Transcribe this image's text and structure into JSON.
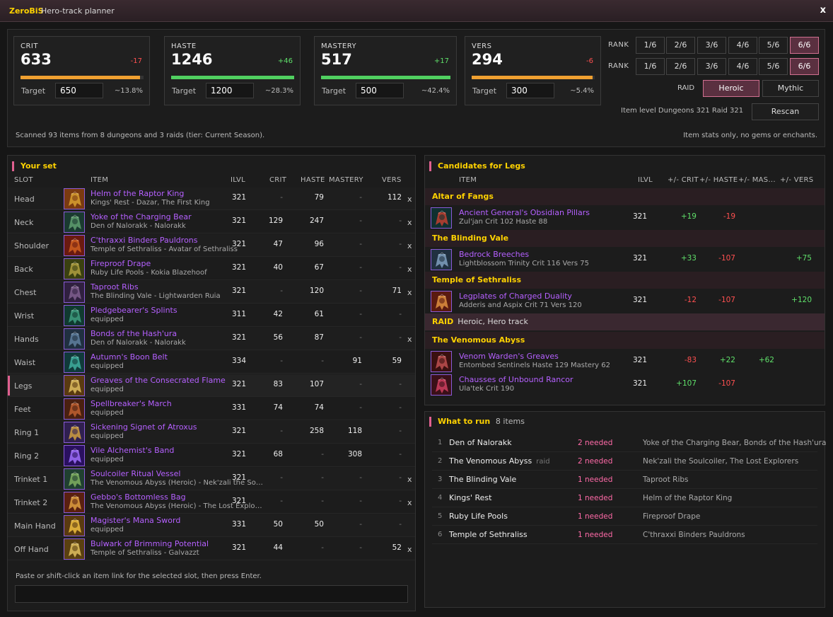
{
  "titlebar": {
    "brand": "ZeroBiS",
    "subtitle": "Hero-track planner",
    "close": "x"
  },
  "stats": [
    {
      "name": "CRIT",
      "value": "633",
      "delta": "-17",
      "delta_sign": "neg",
      "target": "650",
      "pct": "~13.8%",
      "bar_color": "#f0a030",
      "progress": 0.97
    },
    {
      "name": "HASTE",
      "value": "1246",
      "delta": "+46",
      "delta_sign": "pos",
      "target": "1200",
      "pct": "~28.3%",
      "bar_color": "#50d060",
      "progress": 1.0
    },
    {
      "name": "MASTERY",
      "value": "517",
      "delta": "+17",
      "delta_sign": "pos",
      "target": "500",
      "pct": "~42.4%",
      "bar_color": "#50d060",
      "progress": 1.0
    },
    {
      "name": "VERS",
      "value": "294",
      "delta": "-6",
      "delta_sign": "neg",
      "target": "300",
      "pct": "~5.4%",
      "bar_color": "#f0a030",
      "progress": 0.98
    }
  ],
  "target_label": "Target",
  "rank": {
    "label": "RANK",
    "rows": [
      {
        "options": [
          "1/6",
          "2/6",
          "3/6",
          "4/6",
          "5/6",
          "6/6"
        ],
        "selected": 5
      },
      {
        "options": [
          "1/6",
          "2/6",
          "3/6",
          "4/6",
          "5/6",
          "6/6"
        ],
        "selected": 5
      }
    ]
  },
  "raid": {
    "label": "RAID",
    "options": [
      "Heroic",
      "Mythic"
    ],
    "selected": 0
  },
  "ilvl_text": "Item level  Dungeons 321  Raid 321",
  "rescan": "Rescan",
  "scan_info": "Scanned 93 items from 8 dungeons and 3 raids (tier: Current Season).",
  "stats_note": "Item stats only, no gems or enchants.",
  "yourset": {
    "title": "Your set",
    "headers": {
      "slot": "SLOT",
      "item": "ITEM",
      "ilvl": "ILVL",
      "crit": "CRIT",
      "haste": "HASTE",
      "mastery": "MASTERY",
      "vers": "VERS"
    },
    "rows": [
      {
        "slot": "Head",
        "name": "Helm of the Raptor King",
        "src": "Kings' Rest - Dazar, The First King",
        "ilvl": "321",
        "crit": "-",
        "haste": "79",
        "mastery": "-",
        "vers": "112",
        "x": true,
        "icon": "helm-icon",
        "c1": "#7a3a10",
        "c2": "#d8a030"
      },
      {
        "slot": "Neck",
        "name": "Yoke of the Charging Bear",
        "src": "Den of Nalorakk - Nalorakk",
        "ilvl": "321",
        "crit": "129",
        "haste": "247",
        "mastery": "-",
        "vers": "-",
        "x": true,
        "icon": "necklace-icon",
        "c1": "#1a3a30",
        "c2": "#60a070"
      },
      {
        "slot": "Shoulder",
        "name": "C'thraxxi Binders Pauldrons",
        "src": "Temple of Sethraliss - Avatar of Sethraliss",
        "ilvl": "321",
        "crit": "47",
        "haste": "96",
        "mastery": "-",
        "vers": "-",
        "x": true,
        "icon": "shoulder-icon",
        "c1": "#6a1a10",
        "c2": "#d06020"
      },
      {
        "slot": "Back",
        "name": "Fireproof Drape",
        "src": "Ruby Life Pools - Kokia Blazehoof",
        "ilvl": "321",
        "crit": "40",
        "haste": "67",
        "mastery": "-",
        "vers": "-",
        "x": true,
        "icon": "cloak-icon",
        "c1": "#3a4010",
        "c2": "#b0a040"
      },
      {
        "slot": "Chest",
        "name": "Taproot Ribs",
        "src": "The Blinding Vale - Lightwarden Ruia",
        "ilvl": "321",
        "crit": "-",
        "haste": "120",
        "mastery": "-",
        "vers": "71",
        "x": true,
        "icon": "chest-icon",
        "c1": "#302040",
        "c2": "#806090"
      },
      {
        "slot": "Wrist",
        "name": "Pledgebearer's Splints",
        "src": "equipped",
        "ilvl": "311",
        "crit": "42",
        "haste": "61",
        "mastery": "-",
        "vers": "-",
        "x": false,
        "icon": "bracer-icon",
        "c1": "#103a30",
        "c2": "#40a080"
      },
      {
        "slot": "Hands",
        "name": "Bonds of the Hash'ura",
        "src": "Den of Nalorakk - Nalorakk",
        "ilvl": "321",
        "crit": "56",
        "haste": "87",
        "mastery": "-",
        "vers": "-",
        "x": true,
        "icon": "gloves-icon",
        "c1": "#203040",
        "c2": "#6080a0"
      },
      {
        "slot": "Waist",
        "name": "Autumn's Boon Belt",
        "src": "equipped",
        "ilvl": "334",
        "crit": "-",
        "haste": "-",
        "mastery": "91",
        "vers": "59",
        "x": false,
        "icon": "belt-icon",
        "c1": "#103a3a",
        "c2": "#40b0a0"
      },
      {
        "slot": "Legs",
        "name": "Greaves of the Consecrated Flame",
        "src": "equipped",
        "ilvl": "321",
        "crit": "83",
        "haste": "107",
        "mastery": "-",
        "vers": "-",
        "x": false,
        "icon": "legs-icon",
        "c1": "#5a3a10",
        "c2": "#e0c060"
      },
      {
        "slot": "Feet",
        "name": "Spellbreaker's March",
        "src": "equipped",
        "ilvl": "331",
        "crit": "74",
        "haste": "74",
        "mastery": "-",
        "vers": "-",
        "x": false,
        "icon": "boots-icon",
        "c1": "#4a2010",
        "c2": "#c06030"
      },
      {
        "slot": "Ring 1",
        "name": "Sickening Signet of Atroxus",
        "src": "equipped",
        "ilvl": "321",
        "crit": "-",
        "haste": "258",
        "mastery": "118",
        "vers": "-",
        "x": false,
        "icon": "ring-icon",
        "c1": "#302050",
        "c2": "#d0a040"
      },
      {
        "slot": "Ring 2",
        "name": "Vile Alchemist's Band",
        "src": "equipped",
        "ilvl": "321",
        "crit": "68",
        "haste": "-",
        "mastery": "308",
        "vers": "-",
        "x": false,
        "icon": "ring-icon",
        "c1": "#2a1060",
        "c2": "#a070ff"
      },
      {
        "slot": "Trinket 1",
        "name": "Soulcoiler Ritual Vessel",
        "src": "The Venomous Abyss (Heroic) - Nek'zali the Soul...",
        "ilvl": "321",
        "crit": "-",
        "haste": "-",
        "mastery": "-",
        "vers": "-",
        "x": true,
        "icon": "trinket-icon",
        "c1": "#204030",
        "c2": "#80b060"
      },
      {
        "slot": "Trinket 2",
        "name": "Gebbo's Bottomless Bag",
        "src": "The Venomous Abyss (Heroic) - The Lost Explorers",
        "ilvl": "321",
        "crit": "-",
        "haste": "-",
        "mastery": "-",
        "vers": "-",
        "x": true,
        "icon": "bag-icon",
        "c1": "#5a2010",
        "c2": "#e0a040"
      },
      {
        "slot": "Main Hand",
        "name": "Magister's Mana Sword",
        "src": "equipped",
        "ilvl": "331",
        "crit": "50",
        "haste": "50",
        "mastery": "-",
        "vers": "-",
        "x": false,
        "icon": "sword-icon",
        "c1": "#5a3a10",
        "c2": "#f0c040"
      },
      {
        "slot": "Off Hand",
        "name": "Bulwark of Brimming Potential",
        "src": "Temple of Sethraliss - Galvazzt",
        "ilvl": "321",
        "crit": "44",
        "haste": "-",
        "mastery": "-",
        "vers": "52",
        "x": true,
        "icon": "shield-icon",
        "c1": "#5a4010",
        "c2": "#e0c060"
      }
    ],
    "paste_hint": "Paste or shift-click an item link for the selected slot, then press Enter.",
    "paste_value": ""
  },
  "candidates": {
    "title": "Candidates for Legs",
    "headers": {
      "item": "ITEM",
      "ilvl": "ILVL",
      "crit": "+/- CRIT",
      "haste": "+/- HASTE",
      "mastery": "+/- MAS...",
      "vers": "+/- VERS"
    },
    "groups": [
      {
        "name": "Altar of Fangs",
        "sub": "",
        "items": [
          {
            "name": "Ancient General's Obsidian Pillars",
            "src": "Zul'jan   Crit 102  Haste 88",
            "ilvl": "321",
            "crit": "+19",
            "haste": "-19",
            "mastery": "",
            "vers": "",
            "icon": "legs-icon",
            "c1": "#103030",
            "c2": "#c04030"
          }
        ]
      },
      {
        "name": "The Blinding Vale",
        "sub": "",
        "items": [
          {
            "name": "Bedrock Breeches",
            "src": "Lightblossom Trinity   Crit 116  Vers 75",
            "ilvl": "321",
            "crit": "+33",
            "haste": "-107",
            "mastery": "",
            "vers": "+75",
            "icon": "legs-icon",
            "c1": "#203040",
            "c2": "#80a0c0"
          }
        ]
      },
      {
        "name": "Temple of Sethraliss",
        "sub": "",
        "items": [
          {
            "name": "Legplates of Charged Duality",
            "src": "Adderis and Aspix   Crit 71  Vers 120",
            "ilvl": "321",
            "crit": "-12",
            "haste": "-107",
            "mastery": "",
            "vers": "+120",
            "icon": "legs-icon",
            "c1": "#5a1a10",
            "c2": "#e09040"
          }
        ]
      },
      {
        "name": "RAID",
        "sub": "Heroic, Hero track",
        "raid": true,
        "items": []
      },
      {
        "name": "The Venomous Abyss",
        "sub": "",
        "items": [
          {
            "name": "Venom Warden's Greaves",
            "src": "Entombed Sentinels   Haste 129  Mastery 62",
            "ilvl": "321",
            "crit": "-83",
            "haste": "+22",
            "mastery": "+62",
            "vers": "",
            "icon": "legs-icon",
            "c1": "#3a1010",
            "c2": "#c05050"
          },
          {
            "name": "Chausses of Unbound Rancor",
            "src": "Ula'tek   Crit 190",
            "ilvl": "321",
            "crit": "+107",
            "haste": "-107",
            "mastery": "",
            "vers": "",
            "icon": "legs-icon",
            "c1": "#3a1018",
            "c2": "#d04060"
          }
        ]
      }
    ]
  },
  "whattorun": {
    "title": "What to run",
    "count": "8 items",
    "rows": [
      {
        "idx": "1",
        "name": "Den of Nalorakk",
        "tag": "",
        "need": "2 needed",
        "items": "Yoke of the Charging Bear, Bonds of the Hash'ura"
      },
      {
        "idx": "2",
        "name": "The Venomous Abyss",
        "tag": "raid",
        "need": "2 needed",
        "items": "Nek'zali the Soulcoiler, The Lost Explorers"
      },
      {
        "idx": "3",
        "name": "The Blinding Vale",
        "tag": "",
        "need": "1 needed",
        "items": "Taproot Ribs"
      },
      {
        "idx": "4",
        "name": "Kings' Rest",
        "tag": "",
        "need": "1 needed",
        "items": "Helm of the Raptor King"
      },
      {
        "idx": "5",
        "name": "Ruby Life Pools",
        "tag": "",
        "need": "1 needed",
        "items": "Fireproof Drape"
      },
      {
        "idx": "6",
        "name": "Temple of Sethraliss",
        "tag": "",
        "need": "1 needed",
        "items": "C'thraxxi Binders Pauldrons"
      }
    ]
  }
}
